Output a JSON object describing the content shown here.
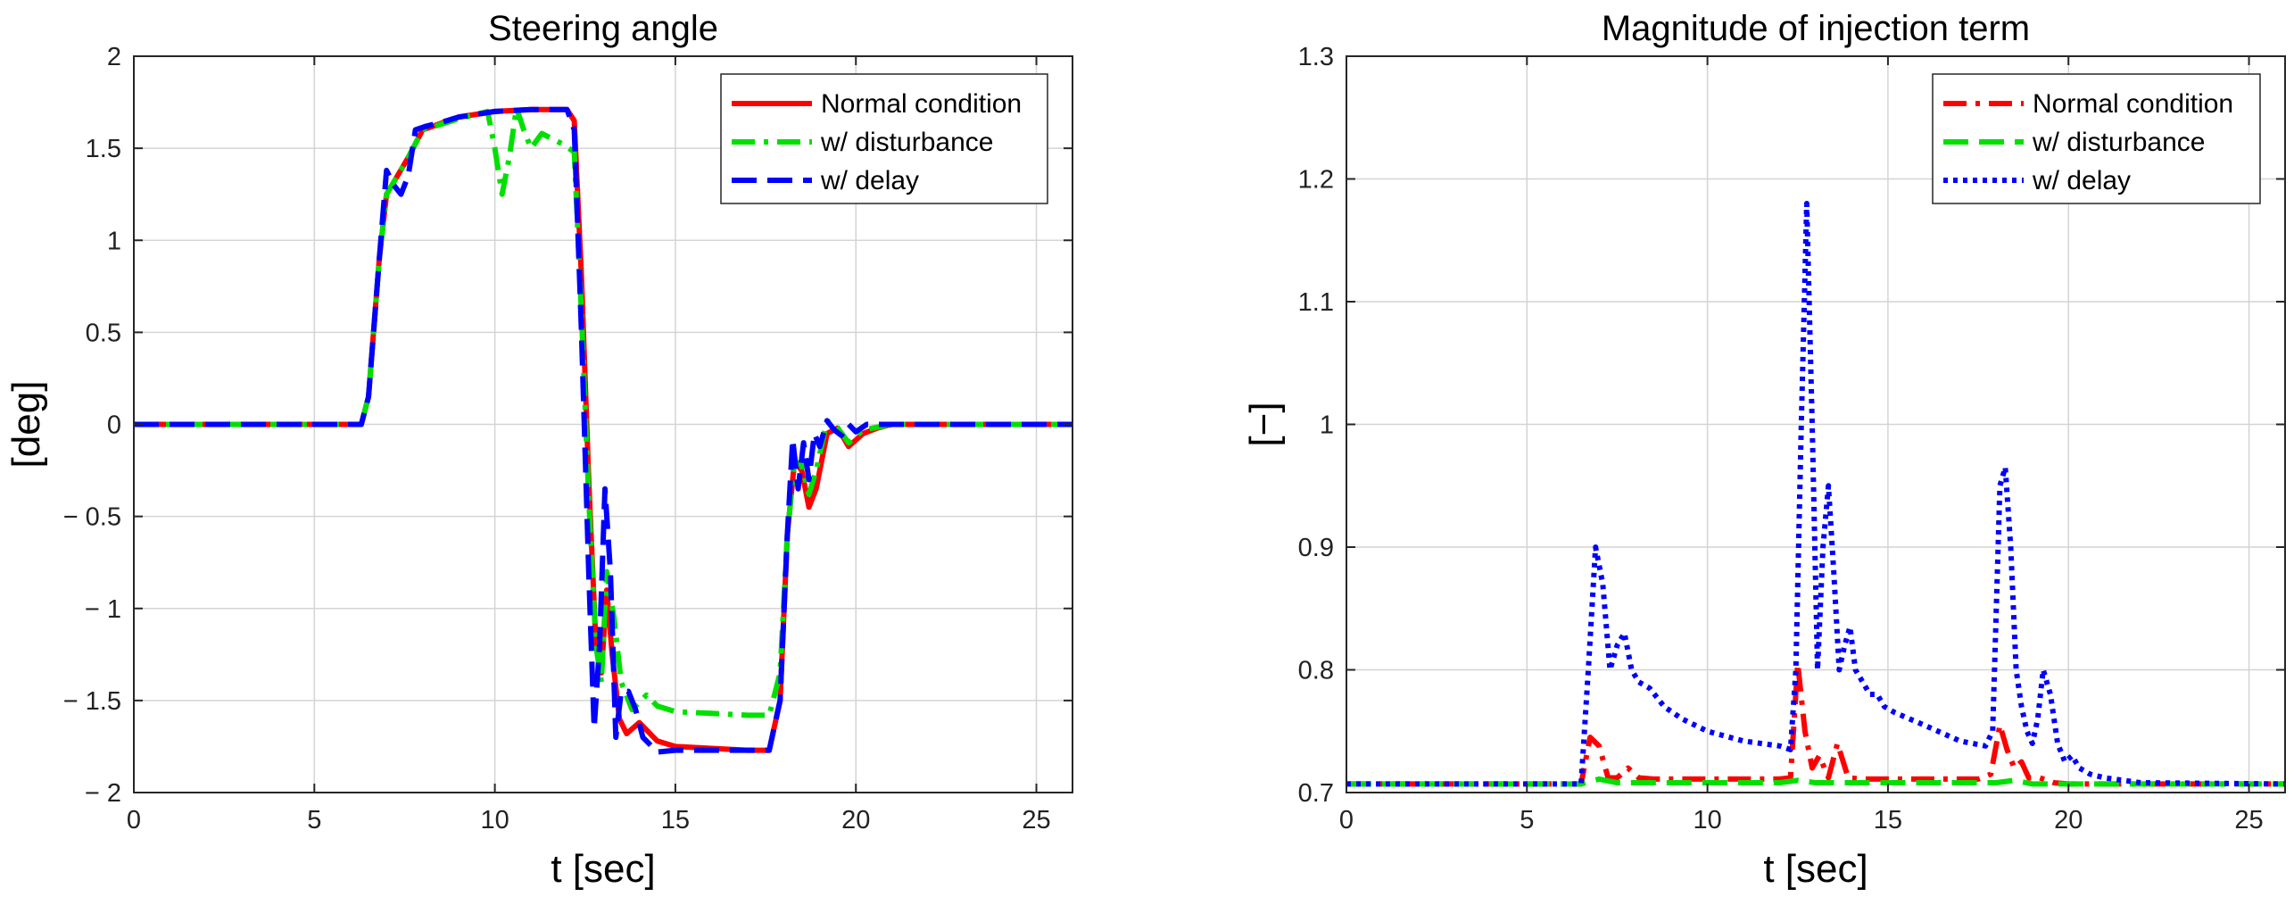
{
  "chart_data": [
    {
      "type": "line",
      "title": "Steering angle",
      "xlabel": "t [sec]",
      "ylabel": "[deg]",
      "xlim": [
        0,
        26
      ],
      "ylim": [
        -2,
        2
      ],
      "xticks": [
        0,
        5,
        10,
        15,
        20,
        25
      ],
      "xtick_labels": [
        "0",
        "5",
        "10",
        "15",
        "20",
        "25"
      ],
      "yticks": [
        2,
        1.5,
        1,
        0.5,
        0,
        -0.5,
        -1,
        -1.5,
        -2
      ],
      "ytick_labels": [
        "2",
        "1.5",
        "1",
        "0.5",
        "0",
        "− 0.5",
        "− 1",
        "− 1.5",
        "− 2"
      ],
      "grid": true,
      "legend_position": "top-right",
      "series": [
        {
          "name": "Normal condition",
          "color": "#ff0000",
          "dash": "solid",
          "x": [
            0,
            6.3,
            6.5,
            6.8,
            7.0,
            7.3,
            7.6,
            8.0,
            9.0,
            10.0,
            11.0,
            12.0,
            12.2,
            12.4,
            12.6,
            12.8,
            12.95,
            13.1,
            13.25,
            13.45,
            13.65,
            14.0,
            14.5,
            15.0,
            16.0,
            17.0,
            17.6,
            17.9,
            18.1,
            18.3,
            18.5,
            18.7,
            18.9,
            19.2,
            19.5,
            19.8,
            20.2,
            20.6,
            21.0,
            26
          ],
          "y": [
            0,
            0,
            0.15,
            0.9,
            1.25,
            1.35,
            1.45,
            1.6,
            1.67,
            1.7,
            1.71,
            1.71,
            1.65,
            0.8,
            -0.3,
            -1.2,
            -1.35,
            -0.9,
            -1.25,
            -1.6,
            -1.68,
            -1.62,
            -1.72,
            -1.75,
            -1.76,
            -1.77,
            -1.77,
            -1.5,
            -0.6,
            -0.2,
            -0.25,
            -0.45,
            -0.35,
            -0.05,
            -0.02,
            -0.12,
            -0.05,
            -0.02,
            0,
            0
          ]
        },
        {
          "name": "w/ disturbance",
          "color": "#00e000",
          "dash": "dashdot",
          "x": [
            0,
            6.3,
            6.5,
            6.8,
            7.0,
            7.3,
            7.6,
            8.0,
            9.0,
            9.8,
            10.0,
            10.2,
            10.4,
            10.6,
            10.8,
            11.0,
            11.3,
            11.6,
            11.9,
            12.2,
            12.4,
            12.6,
            12.8,
            12.95,
            13.1,
            13.3,
            13.5,
            13.8,
            14.2,
            14.5,
            15.0,
            16.0,
            17.0,
            17.6,
            17.9,
            18.1,
            18.3,
            18.5,
            18.7,
            18.9,
            19.2,
            19.5,
            19.8,
            20.2,
            21.0,
            26
          ],
          "y": [
            0,
            0,
            0.15,
            0.9,
            1.25,
            1.35,
            1.45,
            1.6,
            1.66,
            1.7,
            1.5,
            1.25,
            1.45,
            1.72,
            1.6,
            1.5,
            1.58,
            1.55,
            1.52,
            1.48,
            0.6,
            -0.4,
            -1.2,
            -1.4,
            -0.8,
            -1.05,
            -1.4,
            -1.55,
            -1.47,
            -1.53,
            -1.56,
            -1.57,
            -1.58,
            -1.58,
            -1.35,
            -0.6,
            -0.2,
            -0.22,
            -0.38,
            -0.25,
            0.02,
            -0.02,
            -0.1,
            -0.03,
            0,
            0
          ]
        },
        {
          "name": "w/ delay",
          "color": "#0000ff",
          "dash": "dashed",
          "x": [
            0,
            6.3,
            6.5,
            6.8,
            7.0,
            7.2,
            7.4,
            7.6,
            7.8,
            8.1,
            8.5,
            9.0,
            10.0,
            11.0,
            12.0,
            12.2,
            12.4,
            12.6,
            12.75,
            12.9,
            13.05,
            13.2,
            13.35,
            13.5,
            13.7,
            13.9,
            14.1,
            14.5,
            15.0,
            16.0,
            17.0,
            17.6,
            17.9,
            18.1,
            18.25,
            18.4,
            18.55,
            18.7,
            18.85,
            19.0,
            19.2,
            19.4,
            19.6,
            19.8,
            20.0,
            20.3,
            20.6,
            21.0,
            26
          ],
          "y": [
            0,
            0,
            0.15,
            0.9,
            1.38,
            1.3,
            1.25,
            1.35,
            1.6,
            1.62,
            1.64,
            1.67,
            1.7,
            1.71,
            1.71,
            1.6,
            0.5,
            -0.8,
            -1.65,
            -1.2,
            -0.35,
            -0.8,
            -1.7,
            -1.45,
            -1.45,
            -1.55,
            -1.7,
            -1.78,
            -1.77,
            -1.77,
            -1.77,
            -1.77,
            -1.5,
            -0.6,
            -0.08,
            -0.35,
            -0.1,
            -0.3,
            -0.05,
            -0.12,
            0.02,
            -0.03,
            -0.06,
            0.0,
            -0.04,
            0.0,
            0.0,
            0,
            0
          ]
        }
      ]
    },
    {
      "type": "line",
      "title": "Magnitude of injection term",
      "xlabel": "t [sec]",
      "ylabel": "[−]",
      "xlim": [
        0,
        26
      ],
      "ylim": [
        0.7,
        1.3
      ],
      "xticks": [
        0,
        5,
        10,
        15,
        20,
        25
      ],
      "xtick_labels": [
        "0",
        "5",
        "10",
        "15",
        "20",
        "25"
      ],
      "yticks": [
        1.3,
        1.2,
        1.1,
        1,
        0.9,
        0.8,
        0.7
      ],
      "ytick_labels": [
        "1.3",
        "1.2",
        "1.1",
        "1",
        "0.9",
        "0.8",
        "0.7"
      ],
      "grid": true,
      "legend_position": "top-right",
      "series": [
        {
          "name": "Normal condition",
          "color": "#ff0000",
          "dash": "dashdot",
          "x": [
            0,
            6.5,
            6.75,
            7.0,
            7.25,
            7.5,
            7.8,
            8.1,
            8.5,
            9.5,
            12.0,
            12.3,
            12.5,
            12.7,
            12.9,
            13.1,
            13.35,
            13.6,
            13.9,
            14.3,
            14.8,
            17.5,
            17.85,
            18.1,
            18.3,
            18.5,
            18.7,
            18.9,
            19.2,
            19.6,
            20.0,
            26
          ],
          "y": [
            0.707,
            0.707,
            0.745,
            0.738,
            0.712,
            0.712,
            0.72,
            0.712,
            0.711,
            0.711,
            0.711,
            0.712,
            0.805,
            0.75,
            0.72,
            0.73,
            0.712,
            0.74,
            0.712,
            0.711,
            0.711,
            0.711,
            0.715,
            0.755,
            0.735,
            0.72,
            0.725,
            0.712,
            0.712,
            0.708,
            0.707,
            0.707
          ]
        },
        {
          "name": "w/ disturbance",
          "color": "#00e000",
          "dash": "dashed",
          "x": [
            0,
            6.5,
            7.0,
            7.5,
            12.0,
            12.5,
            13.0,
            18.0,
            18.5,
            19.0,
            26
          ],
          "y": [
            0.707,
            0.707,
            0.711,
            0.708,
            0.708,
            0.71,
            0.708,
            0.708,
            0.71,
            0.707,
            0.707
          ]
        },
        {
          "name": "w/ delay",
          "color": "#0000ff",
          "dash": "dotted",
          "x": [
            0,
            6.5,
            6.7,
            6.9,
            7.1,
            7.3,
            7.5,
            7.7,
            7.9,
            8.1,
            8.4,
            8.8,
            9.3,
            10.0,
            11.0,
            12.0,
            12.3,
            12.45,
            12.6,
            12.75,
            12.9,
            13.05,
            13.2,
            13.35,
            13.5,
            13.65,
            13.8,
            13.95,
            14.1,
            14.3,
            14.5,
            14.7,
            14.9,
            15.2,
            15.6,
            16.0,
            17.0,
            17.7,
            17.9,
            18.1,
            18.25,
            18.4,
            18.55,
            18.7,
            18.85,
            19.0,
            19.15,
            19.3,
            19.5,
            19.7,
            19.9,
            20.1,
            20.3,
            20.6,
            21.0,
            22.0,
            26
          ],
          "y": [
            0.707,
            0.707,
            0.8,
            0.9,
            0.87,
            0.8,
            0.82,
            0.83,
            0.8,
            0.79,
            0.785,
            0.77,
            0.76,
            0.75,
            0.742,
            0.738,
            0.735,
            0.8,
            1.0,
            1.18,
            1.0,
            0.8,
            0.9,
            0.95,
            0.88,
            0.8,
            0.82,
            0.835,
            0.8,
            0.79,
            0.78,
            0.78,
            0.77,
            0.765,
            0.76,
            0.755,
            0.742,
            0.738,
            0.75,
            0.95,
            0.965,
            0.9,
            0.8,
            0.77,
            0.75,
            0.74,
            0.76,
            0.8,
            0.78,
            0.74,
            0.725,
            0.73,
            0.72,
            0.715,
            0.712,
            0.708,
            0.707
          ]
        }
      ]
    }
  ]
}
